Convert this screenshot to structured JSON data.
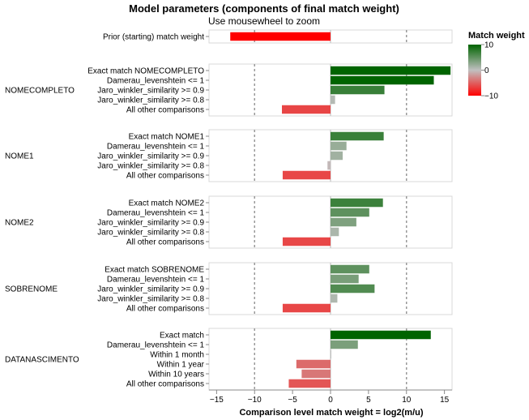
{
  "chart_data": {
    "type": "bar",
    "orientation": "horizontal",
    "title": "Model parameters (components of final match weight)",
    "subtitle": "Use mousewheel to zoom",
    "xlabel": "Comparison level match weight = log2(m/u)",
    "xlim": [
      -16,
      16
    ],
    "xticks": [
      -15,
      -10,
      -5,
      0,
      5,
      10,
      15
    ],
    "reference_lines": [
      -10,
      10
    ],
    "legend": {
      "title": "Match weight",
      "ticks": [
        10,
        0,
        -10
      ],
      "colors": {
        "high": "#006400",
        "mid": "#c0c0c0",
        "low": "#ff0000"
      },
      "position": "top-right"
    },
    "panels": [
      {
        "group": "",
        "bars": [
          {
            "label": "Prior (starting) match weight",
            "value": -13.2
          }
        ]
      },
      {
        "group": "NOMECOMPLETO",
        "bars": [
          {
            "label": "Exact match NOMECOMPLETO",
            "value": 15.8
          },
          {
            "label": "Damerau_levenshtein <= 1",
            "value": 13.6
          },
          {
            "label": "Jaro_winkler_similarity >= 0.9",
            "value": 7.1
          },
          {
            "label": "Jaro_winkler_similarity >= 0.8",
            "value": 0.6
          },
          {
            "label": "All other comparisons",
            "value": -6.4
          }
        ]
      },
      {
        "group": "NOME1",
        "bars": [
          {
            "label": "Exact match NOME1",
            "value": 7.0
          },
          {
            "label": "Damerau_levenshtein <= 1",
            "value": 2.1
          },
          {
            "label": "Jaro_winkler_similarity >= 0.9",
            "value": 1.6
          },
          {
            "label": "Jaro_winkler_similarity >= 0.8",
            "value": -0.4
          },
          {
            "label": "All other comparisons",
            "value": -6.3
          }
        ]
      },
      {
        "group": "NOME2",
        "bars": [
          {
            "label": "Exact match NOME2",
            "value": 6.9
          },
          {
            "label": "Damerau_levenshtein <= 1",
            "value": 5.1
          },
          {
            "label": "Jaro_winkler_similarity >= 0.9",
            "value": 3.4
          },
          {
            "label": "Jaro_winkler_similarity >= 0.8",
            "value": 1.1
          },
          {
            "label": "All other comparisons",
            "value": -6.3
          }
        ]
      },
      {
        "group": "SOBRENOME",
        "bars": [
          {
            "label": "Exact match SOBRENOME",
            "value": 5.1
          },
          {
            "label": "Damerau_levenshtein <= 1",
            "value": 3.7
          },
          {
            "label": "Jaro_winkler_similarity >= 0.9",
            "value": 5.8
          },
          {
            "label": "Jaro_winkler_similarity >= 0.8",
            "value": 0.9
          },
          {
            "label": "All other comparisons",
            "value": -6.3
          }
        ]
      },
      {
        "group": "DATANASCIMENTO",
        "bars": [
          {
            "label": "Exact match",
            "value": 13.2
          },
          {
            "label": "Damerau_levenshtein <= 1",
            "value": 3.6
          },
          {
            "label": "Within 1 month",
            "value": 0.1
          },
          {
            "label": "Within 1 year",
            "value": -4.5
          },
          {
            "label": "Within 10 years",
            "value": -3.8
          },
          {
            "label": "All other comparisons",
            "value": -5.5
          }
        ]
      }
    ]
  }
}
